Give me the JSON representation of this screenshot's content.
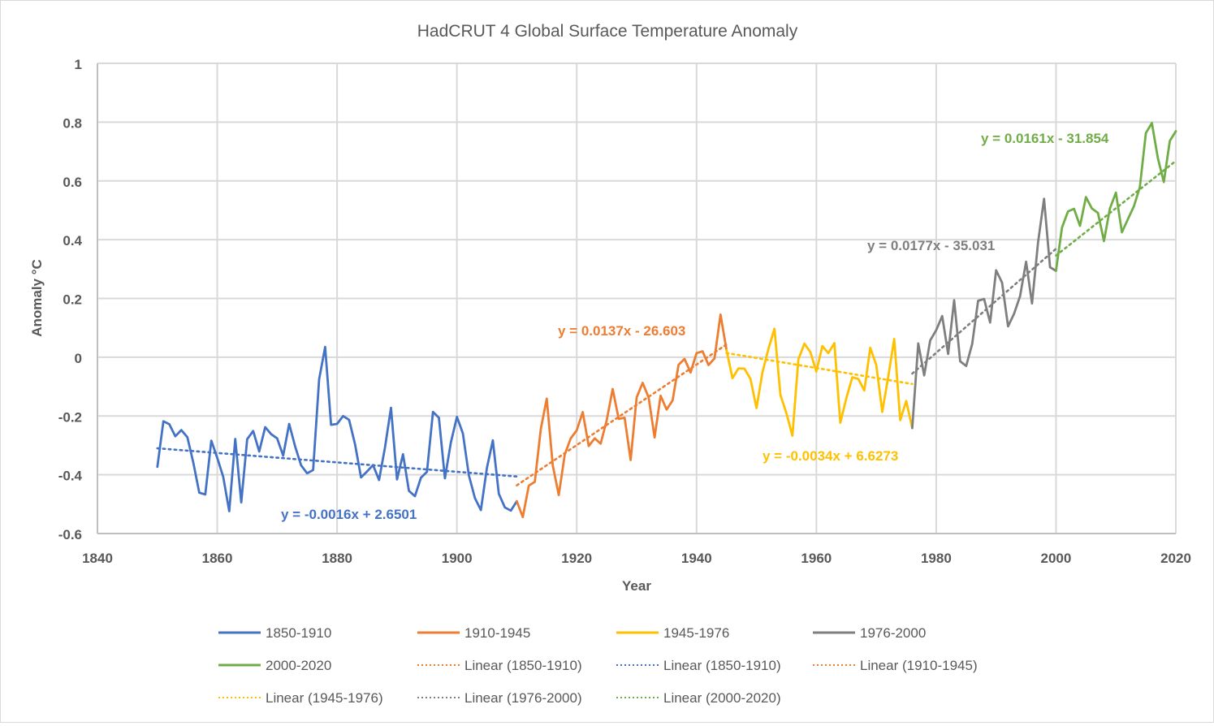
{
  "chart_data": {
    "type": "line",
    "title": "HadCRUT 4 Global Surface Temperature Anomaly",
    "xlabel": "Year",
    "ylabel": "Anomaly °C",
    "xlim": [
      1840,
      2020
    ],
    "ylim": [
      -0.6,
      1
    ],
    "xticks": [
      1840,
      1860,
      1880,
      1900,
      1920,
      1940,
      1960,
      1980,
      2000,
      2020
    ],
    "yticks": [
      -0.6,
      -0.4,
      -0.2,
      0,
      0.2,
      0.4,
      0.6,
      0.8,
      1
    ],
    "ytick_labels": [
      "-0.6",
      "-0.4",
      "-0.2",
      "0",
      "0.2",
      "0.4",
      "0.6",
      "0.8",
      "1"
    ],
    "grid": true,
    "legend_position": "bottom",
    "series": [
      {
        "name": "1850-1910",
        "color": "#4472c4",
        "x_start": 1850,
        "values": [
          -0.373,
          -0.218,
          -0.228,
          -0.269,
          -0.248,
          -0.272,
          -0.358,
          -0.461,
          -0.467,
          -0.284,
          -0.343,
          -0.407,
          -0.524,
          -0.278,
          -0.494,
          -0.279,
          -0.251,
          -0.321,
          -0.238,
          -0.262,
          -0.276,
          -0.335,
          -0.227,
          -0.304,
          -0.368,
          -0.395,
          -0.384,
          -0.075,
          0.035,
          -0.23,
          -0.227,
          -0.2,
          -0.213,
          -0.296,
          -0.409,
          -0.389,
          -0.367,
          -0.418,
          -0.307,
          -0.172,
          -0.416,
          -0.33,
          -0.455,
          -0.473,
          -0.41,
          -0.39,
          -0.186,
          -0.206,
          -0.412,
          -0.289,
          -0.203,
          -0.259,
          -0.402,
          -0.479,
          -0.52,
          -0.377,
          -0.283,
          -0.465,
          -0.511,
          -0.522,
          -0.49
        ]
      },
      {
        "name": "1910-1945",
        "color": "#ed7d31",
        "x_start": 1910,
        "values": [
          -0.49,
          -0.544,
          -0.437,
          -0.424,
          -0.244,
          -0.141,
          -0.368,
          -0.469,
          -0.331,
          -0.276,
          -0.249,
          -0.187,
          -0.302,
          -0.276,
          -0.294,
          -0.215,
          -0.108,
          -0.21,
          -0.206,
          -0.35,
          -0.137,
          -0.087,
          -0.137,
          -0.273,
          -0.131,
          -0.178,
          -0.147,
          -0.026,
          -0.006,
          -0.052,
          0.014,
          0.02,
          -0.027,
          -0.004,
          0.145,
          0.024
        ]
      },
      {
        "name": "1945-1976",
        "color": "#ffc000",
        "x_start": 1945,
        "values": [
          0.024,
          -0.071,
          -0.038,
          -0.039,
          -0.074,
          -0.173,
          -0.052,
          0.028,
          0.097,
          -0.129,
          -0.19,
          -0.267,
          -0.007,
          0.046,
          0.017,
          -0.049,
          0.038,
          0.014,
          0.048,
          -0.223,
          -0.14,
          -0.068,
          -0.074,
          -0.113,
          0.032,
          -0.027,
          -0.186,
          -0.065,
          0.062,
          -0.214,
          -0.149,
          -0.241
        ]
      },
      {
        "name": "1976-2000",
        "color": "#7f7f7f",
        "x_start": 1976,
        "values": [
          -0.241,
          0.047,
          -0.062,
          0.057,
          0.092,
          0.14,
          0.011,
          0.194,
          -0.014,
          -0.03,
          0.045,
          0.192,
          0.198,
          0.118,
          0.296,
          0.254,
          0.105,
          0.148,
          0.208,
          0.325,
          0.183,
          0.39,
          0.539,
          0.306,
          0.294
        ]
      },
      {
        "name": "2000-2020",
        "color": "#70ad47",
        "x_start": 2000,
        "values": [
          0.294,
          0.441,
          0.496,
          0.505,
          0.447,
          0.545,
          0.506,
          0.491,
          0.395,
          0.506,
          0.56,
          0.425,
          0.47,
          0.514,
          0.579,
          0.763,
          0.797,
          0.677,
          0.596,
          0.736,
          0.769
        ]
      }
    ],
    "trendlines": [
      {
        "name": "Linear (1850-1910)",
        "color": "#4472c4",
        "slope": -0.0016,
        "intercept": 2.6501,
        "x_range": [
          1850,
          1910
        ],
        "equation": "y = -0.0016x + 2.6501"
      },
      {
        "name": "Linear (1910-1945)",
        "color": "#ed7d31",
        "slope": 0.0137,
        "intercept": -26.603,
        "x_range": [
          1910,
          1945
        ],
        "equation": "y = 0.0137x - 26.603"
      },
      {
        "name": "Linear (1945-1976)",
        "color": "#ffc000",
        "slope": -0.0034,
        "intercept": 6.6273,
        "x_range": [
          1945,
          1976
        ],
        "equation": "y = -0.0034x + 6.6273"
      },
      {
        "name": "Linear (1976-2000)",
        "color": "#7f7f7f",
        "slope": 0.0177,
        "intercept": -35.031,
        "x_range": [
          1976,
          2000
        ],
        "equation": "y = 0.0177x - 35.031"
      },
      {
        "name": "Linear (2000-2020)",
        "color": "#70ad47",
        "slope": 0.0161,
        "intercept": -31.854,
        "x_range": [
          2000,
          2020
        ],
        "equation": "y = 0.0161x - 31.854"
      }
    ],
    "legend": [
      {
        "label": "1850-1910",
        "color": "#4472c4",
        "style": "solid"
      },
      {
        "label": "1910-1945",
        "color": "#ed7d31",
        "style": "solid"
      },
      {
        "label": "1945-1976",
        "color": "#ffc000",
        "style": "solid"
      },
      {
        "label": "1976-2000",
        "color": "#7f7f7f",
        "style": "solid"
      },
      {
        "label": "2000-2020",
        "color": "#70ad47",
        "style": "solid"
      },
      {
        "label": "Linear (1850-1910)",
        "color": "#ed7d31",
        "style": "dotted"
      },
      {
        "label": "Linear (1850-1910)",
        "color": "#4472c4",
        "style": "dotted"
      },
      {
        "label": "Linear (1910-1945)",
        "color": "#ed7d31",
        "style": "dotted"
      },
      {
        "label": "Linear (1945-1976)",
        "color": "#ffc000",
        "style": "dotted"
      },
      {
        "label": "Linear (1976-2000)",
        "color": "#7f7f7f",
        "style": "dotted"
      },
      {
        "label": "Linear (2000-2020)",
        "color": "#70ad47",
        "style": "dotted"
      }
    ]
  }
}
